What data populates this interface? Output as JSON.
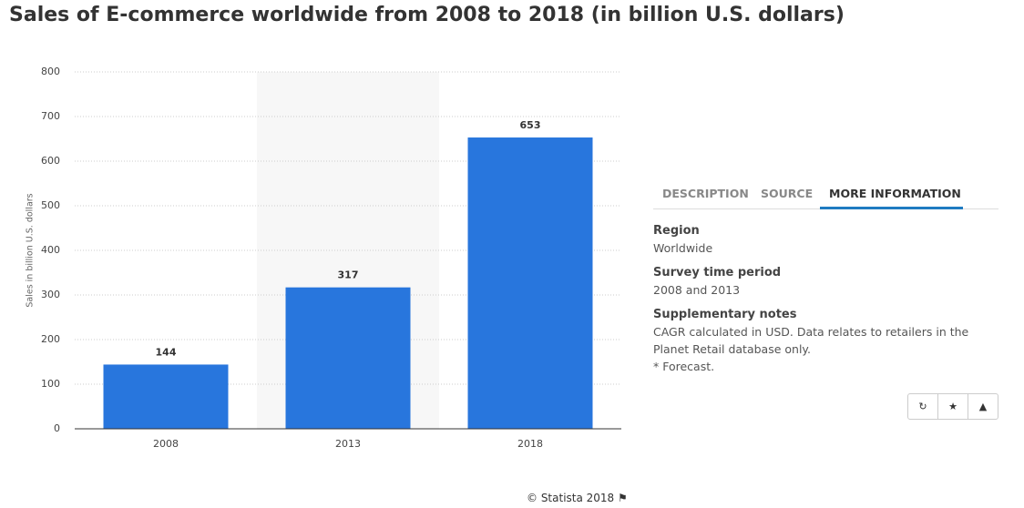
{
  "chart_data": {
    "type": "bar",
    "title": "Sales of E-commerce worldwide from 2008 to 2018 (in billion U.S. dollars)",
    "y_label": "Sales in billion U.S. dollars",
    "categories": [
      "2008",
      "2013",
      "2018"
    ],
    "values": [
      144,
      317,
      653
    ],
    "color": "#2876dd",
    "ylim": [
      0,
      800
    ],
    "yticks": [
      0,
      100,
      200,
      300,
      400,
      500,
      600,
      700,
      800
    ],
    "grid": true
  },
  "panel": {
    "tabs": [
      "DESCRIPTION",
      "SOURCE",
      "MORE INFORMATION"
    ],
    "sections": [
      {
        "heading": "Region",
        "lines": [
          "Worldwide"
        ]
      },
      {
        "heading": "Survey time period",
        "lines": [
          "2008 and 2013"
        ]
      },
      {
        "heading": "Supplementary notes",
        "lines": [
          "CAGR calculated in USD. Data relates to retailers in the Planet Retail database only.",
          "* Forecast."
        ]
      }
    ]
  },
  "footer": "© Statista 2018"
}
